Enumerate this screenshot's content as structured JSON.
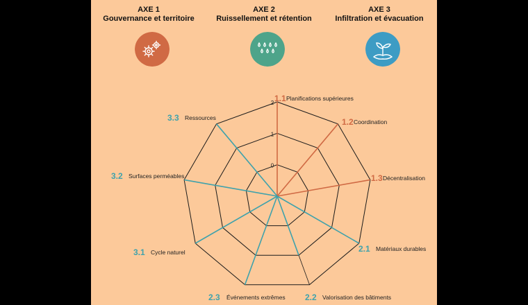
{
  "axes": [
    {
      "title": "AXE 1",
      "subtitle": "Gouvernance et territoire",
      "icon": "gears-icon",
      "color": "#d06a44"
    },
    {
      "title": "AXE 2",
      "subtitle": "Ruissellement et rétention",
      "icon": "raindrops-icon",
      "color": "#4ea48a"
    },
    {
      "title": "AXE 3",
      "subtitle": "Infiltration et évacuation",
      "icon": "sprout-icon",
      "color": "#3d9cc4"
    }
  ],
  "chart_data": {
    "type": "radar",
    "rlim": [
      -1,
      2
    ],
    "ring_labels": [
      "0",
      "1",
      "2"
    ],
    "categories": [
      {
        "code": "1.1",
        "label": "Planifications supérieures",
        "axe": 1,
        "value": 2
      },
      {
        "code": "1.2",
        "label": "Coordination",
        "axe": 1,
        "value": 2
      },
      {
        "code": "1.3",
        "label": "Décentralisation",
        "axe": 1,
        "value": 2
      },
      {
        "code": "2.1",
        "label": "Matériaux durables",
        "axe": 2,
        "value": 2
      },
      {
        "code": "2.2",
        "label": "Valorisation des bâtiments",
        "axe": 2,
        "value": 1
      },
      {
        "code": "2.3",
        "label": "Événements extrêmes",
        "axe": 2,
        "value": 2
      },
      {
        "code": "3.1",
        "label": "Cycle naturel",
        "axe": 3,
        "value": 2
      },
      {
        "code": "3.2",
        "label": "Surfaces perméables",
        "axe": 3,
        "value": 2
      },
      {
        "code": "3.3",
        "label": "Ressources",
        "axe": 3,
        "value": 2
      }
    ],
    "colors": {
      "axe1": "#d06a44",
      "axe2": "#3fa2ac",
      "axe3": "#3fa2ac",
      "grid": "#1a1a1a"
    }
  }
}
